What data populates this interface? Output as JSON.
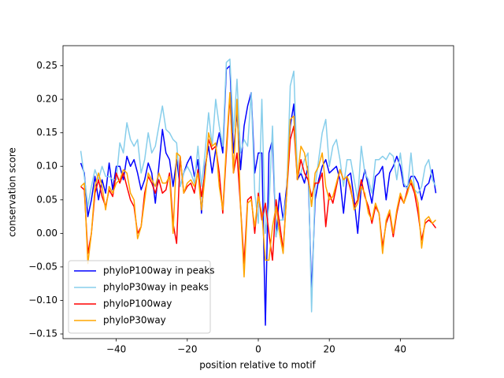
{
  "chart_data": {
    "type": "line",
    "xlabel": "position relative to motif",
    "ylabel": "conservation score",
    "x": [
      -50,
      -49,
      -48,
      -47,
      -46,
      -45,
      -44,
      -43,
      -42,
      -41,
      -40,
      -39,
      -38,
      -37,
      -36,
      -35,
      -34,
      -33,
      -32,
      -31,
      -30,
      -29,
      -28,
      -27,
      -26,
      -25,
      -24,
      -23,
      -22,
      -21,
      -20,
      -19,
      -18,
      -17,
      -16,
      -15,
      -14,
      -13,
      -12,
      -11,
      -10,
      -9,
      -8,
      -7,
      -6,
      -5,
      -4,
      -3,
      -2,
      -1,
      0,
      1,
      2,
      3,
      4,
      5,
      6,
      7,
      8,
      9,
      10,
      11,
      12,
      13,
      14,
      15,
      16,
      17,
      18,
      19,
      20,
      21,
      22,
      23,
      24,
      25,
      26,
      27,
      28,
      29,
      30,
      31,
      32,
      33,
      34,
      35,
      36,
      37,
      38,
      39,
      40,
      41,
      42,
      43,
      44,
      45,
      46,
      47,
      48,
      49,
      50
    ],
    "series": [
      {
        "name": "phyloP100way in peaks",
        "color": "#0000ff",
        "values": [
          0.105,
          0.09,
          0.025,
          0.05,
          0.085,
          0.05,
          0.08,
          0.06,
          0.105,
          0.065,
          0.1,
          0.1,
          0.08,
          0.115,
          0.1,
          0.11,
          0.09,
          0.065,
          0.08,
          0.105,
          0.09,
          0.045,
          0.1,
          0.155,
          0.12,
          0.11,
          0.07,
          0.11,
          0.07,
          0.09,
          0.105,
          0.115,
          0.085,
          0.11,
          0.03,
          0.1,
          0.13,
          0.09,
          0.125,
          0.15,
          0.12,
          0.245,
          0.25,
          0.12,
          0.18,
          0.095,
          0.16,
          0.19,
          0.21,
          0.09,
          0.12,
          0.12,
          -0.137,
          0.12,
          0.14,
          -0.005,
          0.06,
          0.02,
          0.07,
          0.16,
          0.193,
          0.08,
          0.09,
          0.075,
          0.1,
          -0.09,
          0.05,
          0.08,
          0.1,
          0.11,
          0.09,
          0.095,
          0.1,
          0.08,
          0.03,
          0.085,
          0.09,
          0.05,
          0.0,
          0.07,
          0.095,
          0.07,
          0.045,
          0.085,
          0.09,
          0.1,
          0.05,
          0.09,
          0.1,
          0.115,
          0.1,
          0.07,
          0.07,
          0.085,
          0.085,
          0.075,
          0.05,
          0.07,
          0.075,
          0.095,
          0.06
        ]
      },
      {
        "name": "phyloP30way in peaks",
        "color": "#87ceeb",
        "values": [
          0.123,
          0.085,
          0.04,
          0.07,
          0.095,
          0.08,
          0.1,
          0.085,
          0.085,
          0.08,
          0.08,
          0.135,
          0.12,
          0.165,
          0.14,
          0.13,
          0.14,
          0.09,
          0.11,
          0.15,
          0.12,
          0.13,
          0.16,
          0.19,
          0.155,
          0.15,
          0.14,
          0.135,
          0.07,
          0.09,
          0.1,
          0.09,
          0.075,
          0.13,
          0.07,
          0.12,
          0.18,
          0.13,
          0.2,
          0.16,
          0.13,
          0.255,
          0.26,
          0.15,
          0.23,
          0.12,
          0.14,
          0.13,
          0.21,
          0.06,
          0.015,
          0.2,
          0.0,
          0.04,
          0.16,
          -0.005,
          0.02,
          0.02,
          0.06,
          0.22,
          0.242,
          0.09,
          0.09,
          0.11,
          0.12,
          -0.117,
          0.07,
          0.11,
          0.15,
          0.17,
          0.1,
          0.13,
          0.14,
          0.11,
          0.07,
          0.11,
          0.11,
          0.08,
          0.05,
          0.13,
          0.09,
          0.08,
          0.06,
          0.11,
          0.11,
          0.115,
          0.11,
          0.12,
          0.115,
          0.08,
          0.12,
          0.075,
          0.065,
          0.12,
          0.065,
          0.06,
          0.07,
          0.1,
          0.11,
          0.08,
          0.07
        ]
      },
      {
        "name": "phyloP100way",
        "color": "#ff0000",
        "values": [
          0.07,
          0.065,
          -0.03,
          0.0,
          0.06,
          0.08,
          0.055,
          0.04,
          0.065,
          0.055,
          0.09,
          0.075,
          0.09,
          0.07,
          0.05,
          0.04,
          0.0,
          0.01,
          0.06,
          0.085,
          0.075,
          0.06,
          0.08,
          0.06,
          0.065,
          0.09,
          0.015,
          -0.015,
          0.115,
          0.06,
          0.07,
          0.075,
          0.06,
          0.095,
          0.055,
          0.09,
          0.14,
          0.125,
          0.13,
          0.09,
          0.03,
          0.12,
          0.205,
          0.09,
          0.12,
          0.04,
          -0.045,
          0.05,
          0.055,
          0.0,
          0.06,
          0.02,
          0.045,
          0.0,
          -0.04,
          0.05,
          0.015,
          -0.025,
          0.06,
          0.14,
          0.16,
          0.08,
          0.11,
          0.09,
          0.08,
          0.055,
          0.075,
          0.075,
          0.09,
          0.01,
          0.06,
          0.045,
          0.07,
          0.095,
          0.08,
          0.085,
          0.065,
          0.04,
          0.05,
          0.08,
          0.055,
          0.04,
          0.015,
          0.04,
          0.03,
          -0.02,
          0.015,
          0.03,
          -0.005,
          0.03,
          0.055,
          0.045,
          0.065,
          0.075,
          0.06,
          0.03,
          -0.01,
          0.015,
          0.02,
          0.015,
          0.008
        ]
      },
      {
        "name": "phyloP30way",
        "color": "#ffa500",
        "values": [
          0.07,
          0.075,
          -0.045,
          0.0,
          0.07,
          0.09,
          0.07,
          0.035,
          0.07,
          0.06,
          0.075,
          0.08,
          0.095,
          0.09,
          0.06,
          0.05,
          -0.008,
          0.01,
          0.05,
          0.09,
          0.08,
          0.07,
          0.09,
          0.075,
          0.075,
          0.085,
          0.0,
          0.12,
          0.115,
          0.06,
          0.075,
          0.08,
          0.07,
          0.09,
          0.035,
          0.085,
          0.15,
          0.13,
          0.135,
          0.07,
          0.035,
          0.13,
          0.21,
          0.09,
          0.2,
          0.04,
          -0.065,
          0.045,
          0.05,
          0.01,
          0.055,
          0.03,
          -0.04,
          -0.04,
          0.01,
          0.04,
          0.0,
          -0.03,
          0.06,
          0.17,
          0.175,
          0.08,
          0.13,
          0.12,
          0.09,
          0.04,
          0.09,
          0.1,
          0.12,
          0.07,
          0.05,
          0.055,
          0.075,
          0.095,
          0.08,
          0.085,
          0.07,
          0.035,
          0.045,
          0.07,
          0.06,
          0.03,
          0.02,
          0.045,
          0.03,
          -0.03,
          0.02,
          0.035,
          0.0,
          0.035,
          0.06,
          0.045,
          0.06,
          0.08,
          0.065,
          0.045,
          -0.022,
          0.02,
          0.025,
          0.015,
          0.02
        ]
      }
    ],
    "xlim": [
      -55,
      55
    ],
    "ylim": [
      -0.157,
      0.28
    ],
    "xticks": [
      {
        "value": -40,
        "label": "−40"
      },
      {
        "value": -20,
        "label": "−20"
      },
      0,
      20,
      40
    ],
    "yticks": [
      {
        "value": -0.15,
        "label": "−0.15"
      },
      {
        "value": -0.1,
        "label": "−0.10"
      },
      {
        "value": -0.05,
        "label": "−0.05"
      },
      {
        "value": 0,
        "label": "0.00"
      },
      {
        "value": 0.05,
        "label": "0.05"
      },
      {
        "value": 0.1,
        "label": "0.10"
      },
      {
        "value": 0.15,
        "label": "0.15"
      },
      {
        "value": 0.2,
        "label": "0.20"
      },
      {
        "value": 0.25,
        "label": "0.25"
      }
    ],
    "legend": "lower left"
  }
}
